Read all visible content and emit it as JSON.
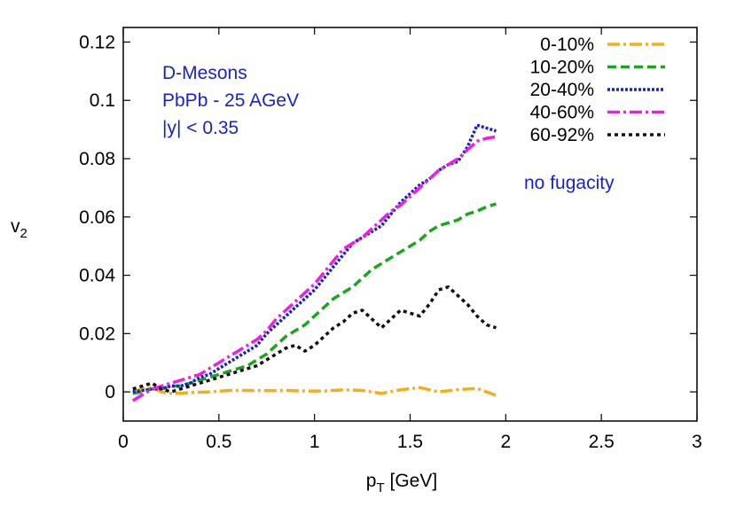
{
  "chart_data": {
    "type": "line",
    "xlabel_main": "p",
    "xlabel_sub": "T",
    "xlabel_unit": " [GeV]",
    "ylabel_main": "v",
    "ylabel_sub": "2",
    "xlim": [
      0,
      3
    ],
    "ylim": [
      -0.01,
      0.125
    ],
    "xticks": [
      0,
      0.5,
      1,
      1.5,
      2,
      2.5,
      3
    ],
    "xtick_labels": [
      "0",
      "0.5",
      "1",
      "1.5",
      "2",
      "2.5",
      "3"
    ],
    "yticks": [
      0,
      0.02,
      0.04,
      0.06,
      0.08,
      0.1,
      0.12
    ],
    "ytick_labels": [
      "0",
      "0.02",
      "0.04",
      "0.06",
      "0.08",
      "0.1",
      "0.12"
    ],
    "grid": false,
    "legend_position": "top-right",
    "annotations": {
      "particle": "D-Mesons",
      "system": "PbPb - 25 AGeV",
      "rapidity": "|y| < 0.35",
      "note": "no fugacity"
    },
    "series": [
      {
        "name": "0-10%",
        "color": "#f5ae1a",
        "dash": "14 4 3 4",
        "points": [
          [
            0.05,
            0.0
          ],
          [
            0.1,
            0.001
          ],
          [
            0.15,
            0.0015
          ],
          [
            0.2,
            0.0
          ],
          [
            0.25,
            -0.0005
          ],
          [
            0.3,
            -0.0005
          ],
          [
            0.35,
            -0.0002
          ],
          [
            0.45,
            0.0
          ],
          [
            0.55,
            0.0005
          ],
          [
            0.65,
            0.0005
          ],
          [
            0.75,
            0.0004
          ],
          [
            0.85,
            0.0005
          ],
          [
            0.95,
            0.0003
          ],
          [
            1.05,
            0.0003
          ],
          [
            1.15,
            0.0007
          ],
          [
            1.25,
            0.0005
          ],
          [
            1.35,
            -0.0005
          ],
          [
            1.45,
            0.0007
          ],
          [
            1.55,
            0.0015
          ],
          [
            1.65,
            0.0
          ],
          [
            1.75,
            0.0008
          ],
          [
            1.85,
            0.0012
          ],
          [
            1.95,
            -0.0012
          ]
        ]
      },
      {
        "name": "10-20%",
        "color": "#1ca61c",
        "dash": "10 5",
        "points": [
          [
            0.05,
            -0.0005
          ],
          [
            0.1,
            0.0
          ],
          [
            0.15,
            0.001
          ],
          [
            0.2,
            0.001
          ],
          [
            0.25,
            0.002
          ],
          [
            0.3,
            0.002
          ],
          [
            0.35,
            0.003
          ],
          [
            0.4,
            0.004
          ],
          [
            0.45,
            0.005
          ],
          [
            0.5,
            0.006
          ],
          [
            0.55,
            0.007
          ],
          [
            0.6,
            0.008
          ],
          [
            0.65,
            0.009
          ],
          [
            0.7,
            0.011
          ],
          [
            0.75,
            0.013
          ],
          [
            0.8,
            0.016
          ],
          [
            0.85,
            0.019
          ],
          [
            0.9,
            0.021
          ],
          [
            0.95,
            0.023
          ],
          [
            1.0,
            0.026
          ],
          [
            1.05,
            0.029
          ],
          [
            1.1,
            0.032
          ],
          [
            1.15,
            0.034
          ],
          [
            1.2,
            0.036
          ],
          [
            1.25,
            0.039
          ],
          [
            1.3,
            0.042
          ],
          [
            1.35,
            0.044
          ],
          [
            1.4,
            0.046
          ],
          [
            1.45,
            0.048
          ],
          [
            1.5,
            0.05
          ],
          [
            1.55,
            0.052
          ],
          [
            1.6,
            0.055
          ],
          [
            1.65,
            0.057
          ],
          [
            1.7,
            0.058
          ],
          [
            1.75,
            0.059
          ],
          [
            1.8,
            0.061
          ],
          [
            1.85,
            0.062
          ],
          [
            1.9,
            0.0635
          ],
          [
            1.95,
            0.0645
          ]
        ]
      },
      {
        "name": "20-40%",
        "color": "#1a23c8",
        "dash": "3 2",
        "points": [
          [
            0.05,
            0.0
          ],
          [
            0.1,
            0.0005
          ],
          [
            0.15,
            0.001
          ],
          [
            0.2,
            0.001
          ],
          [
            0.25,
            0.002
          ],
          [
            0.3,
            0.002
          ],
          [
            0.35,
            0.003
          ],
          [
            0.4,
            0.005
          ],
          [
            0.45,
            0.006
          ],
          [
            0.5,
            0.008
          ],
          [
            0.55,
            0.01
          ],
          [
            0.6,
            0.012
          ],
          [
            0.65,
            0.014
          ],
          [
            0.7,
            0.016
          ],
          [
            0.75,
            0.02
          ],
          [
            0.8,
            0.023
          ],
          [
            0.85,
            0.026
          ],
          [
            0.9,
            0.029
          ],
          [
            0.95,
            0.032
          ],
          [
            1.0,
            0.035
          ],
          [
            1.05,
            0.039
          ],
          [
            1.1,
            0.043
          ],
          [
            1.15,
            0.047
          ],
          [
            1.2,
            0.051
          ],
          [
            1.25,
            0.053
          ],
          [
            1.3,
            0.055
          ],
          [
            1.35,
            0.057
          ],
          [
            1.4,
            0.061
          ],
          [
            1.45,
            0.065
          ],
          [
            1.5,
            0.068
          ],
          [
            1.55,
            0.071
          ],
          [
            1.6,
            0.073
          ],
          [
            1.65,
            0.076
          ],
          [
            1.7,
            0.078
          ],
          [
            1.75,
            0.079
          ],
          [
            1.8,
            0.084
          ],
          [
            1.85,
            0.0915
          ],
          [
            1.9,
            0.0905
          ],
          [
            1.95,
            0.0895
          ]
        ]
      },
      {
        "name": "40-60%",
        "color": "#ef1ee6",
        "dash": "14 4 3 4",
        "points": [
          [
            0.05,
            -0.003
          ],
          [
            0.1,
            -0.001
          ],
          [
            0.15,
            0.001
          ],
          [
            0.2,
            0.002
          ],
          [
            0.25,
            0.003
          ],
          [
            0.3,
            0.004
          ],
          [
            0.35,
            0.005
          ],
          [
            0.4,
            0.006
          ],
          [
            0.45,
            0.008
          ],
          [
            0.5,
            0.01
          ],
          [
            0.55,
            0.012
          ],
          [
            0.6,
            0.014
          ],
          [
            0.65,
            0.016
          ],
          [
            0.7,
            0.018
          ],
          [
            0.75,
            0.021
          ],
          [
            0.8,
            0.025
          ],
          [
            0.85,
            0.028
          ],
          [
            0.9,
            0.031
          ],
          [
            0.95,
            0.034
          ],
          [
            1.0,
            0.037
          ],
          [
            1.05,
            0.041
          ],
          [
            1.1,
            0.045
          ],
          [
            1.15,
            0.049
          ],
          [
            1.2,
            0.051
          ],
          [
            1.25,
            0.053
          ],
          [
            1.3,
            0.056
          ],
          [
            1.35,
            0.059
          ],
          [
            1.4,
            0.062
          ],
          [
            1.45,
            0.064
          ],
          [
            1.5,
            0.067
          ],
          [
            1.55,
            0.07
          ],
          [
            1.6,
            0.073
          ],
          [
            1.65,
            0.076
          ],
          [
            1.7,
            0.078
          ],
          [
            1.75,
            0.08
          ],
          [
            1.8,
            0.083
          ],
          [
            1.85,
            0.086
          ],
          [
            1.9,
            0.087
          ],
          [
            1.95,
            0.0875
          ]
        ]
      },
      {
        "name": "60-92%",
        "color": "#111111",
        "dash": "4 4",
        "points": [
          [
            0.05,
            0.001
          ],
          [
            0.1,
            0.002
          ],
          [
            0.15,
            0.003
          ],
          [
            0.2,
            0.001
          ],
          [
            0.25,
            0.0
          ],
          [
            0.3,
            0.001
          ],
          [
            0.35,
            0.002
          ],
          [
            0.4,
            0.003
          ],
          [
            0.45,
            0.004
          ],
          [
            0.5,
            0.005
          ],
          [
            0.55,
            0.006
          ],
          [
            0.6,
            0.007
          ],
          [
            0.65,
            0.008
          ],
          [
            0.7,
            0.009
          ],
          [
            0.75,
            0.011
          ],
          [
            0.8,
            0.013
          ],
          [
            0.85,
            0.015
          ],
          [
            0.9,
            0.016
          ],
          [
            0.95,
            0.014
          ],
          [
            1.0,
            0.016
          ],
          [
            1.05,
            0.019
          ],
          [
            1.1,
            0.022
          ],
          [
            1.15,
            0.024
          ],
          [
            1.2,
            0.027
          ],
          [
            1.25,
            0.028
          ],
          [
            1.3,
            0.025
          ],
          [
            1.35,
            0.022
          ],
          [
            1.4,
            0.025
          ],
          [
            1.45,
            0.028
          ],
          [
            1.5,
            0.027
          ],
          [
            1.55,
            0.026
          ],
          [
            1.6,
            0.03
          ],
          [
            1.65,
            0.035
          ],
          [
            1.7,
            0.036
          ],
          [
            1.75,
            0.033
          ],
          [
            1.8,
            0.03
          ],
          [
            1.85,
            0.026
          ],
          [
            1.9,
            0.023
          ],
          [
            1.95,
            0.022
          ]
        ]
      }
    ]
  }
}
